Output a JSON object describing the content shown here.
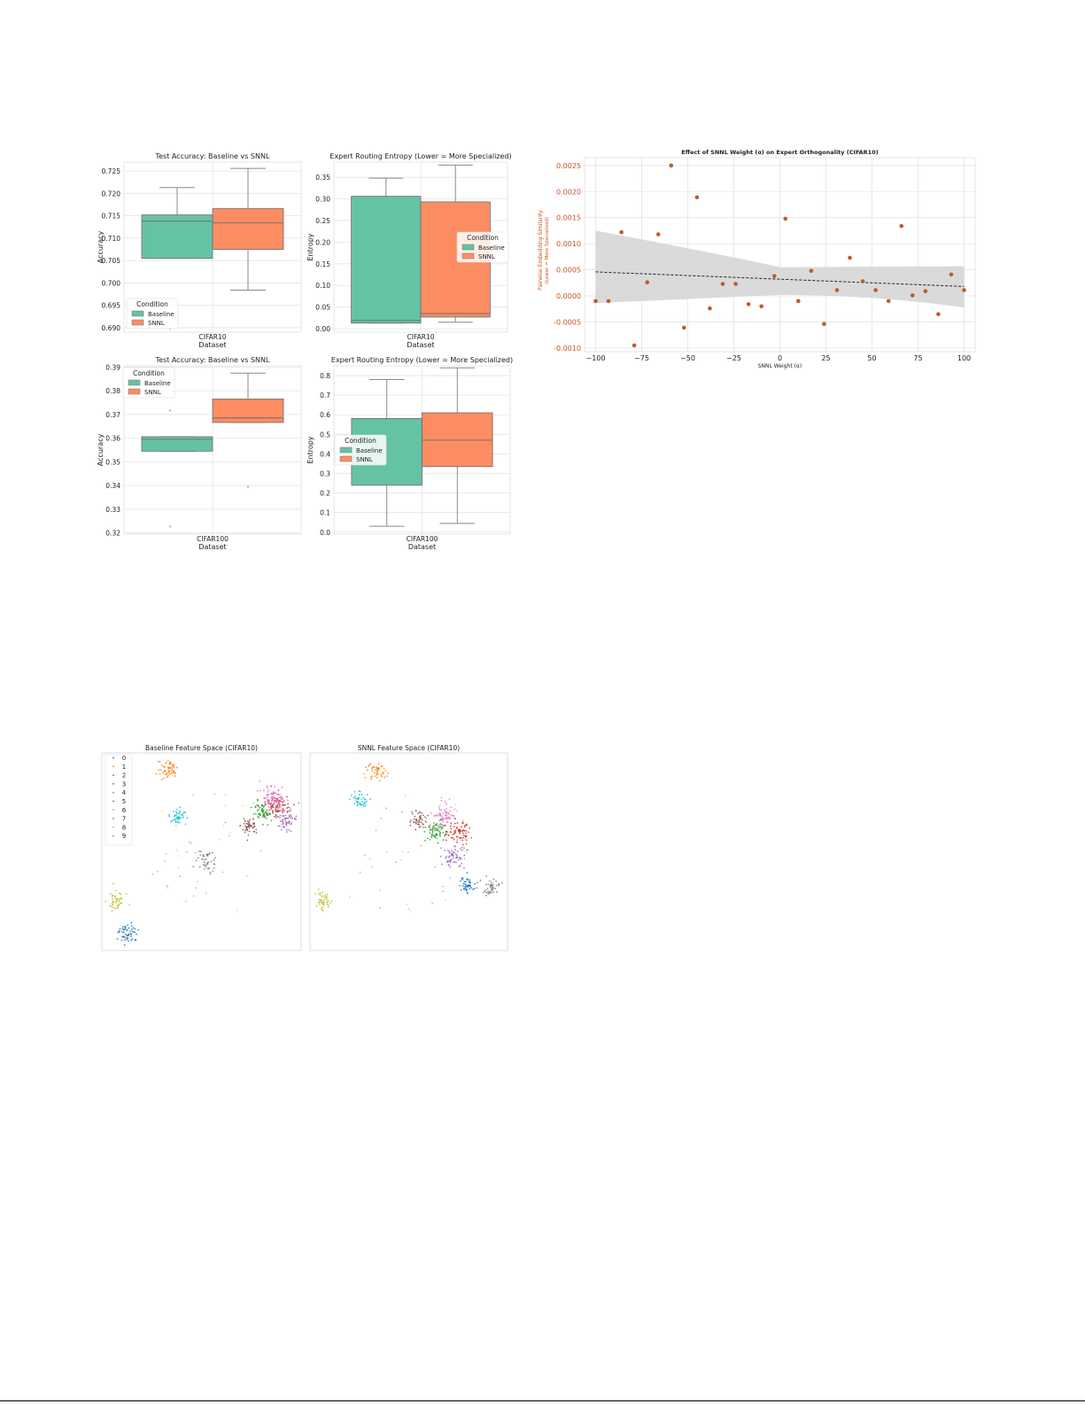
{
  "colors": {
    "baseline": "#66c2a5",
    "snnl": "#fc8d62",
    "orange_text": "#c8541e",
    "point": "#c05a2e",
    "band": "#d6d6d6",
    "grid": "#e3e3e3",
    "whisker": "#8a8a8a"
  },
  "chart_data": [
    {
      "id": "acc_cifar10",
      "type": "box",
      "title": "Test Accuracy: Baseline vs SNNL",
      "xlabel": "Dataset",
      "ylabel": "Accuracy",
      "categories": [
        "CIFAR10"
      ],
      "ylim": [
        0.689,
        0.727
      ],
      "yticks": [
        0.69,
        0.695,
        0.7,
        0.705,
        0.71,
        0.715,
        0.72,
        0.725
      ],
      "tick_decimals": 3,
      "legend": {
        "title": "Condition",
        "entries": [
          "Baseline",
          "SNNL"
        ],
        "placement": "lower-left"
      },
      "series": [
        {
          "name": "Baseline",
          "whislo": 0.7055,
          "q1": 0.7055,
          "median": 0.7138,
          "q3": 0.7152,
          "whishi": 0.7213,
          "fliers": [
            0.6898
          ]
        },
        {
          "name": "SNNL",
          "whislo": 0.6984,
          "q1": 0.7075,
          "median": 0.7134,
          "q3": 0.7166,
          "whishi": 0.7256,
          "fliers": []
        }
      ]
    },
    {
      "id": "ent_cifar10",
      "type": "box",
      "title": "Expert Routing Entropy (Lower = More Specialized)",
      "xlabel": "Dataset",
      "ylabel": "Entropy",
      "categories": [
        "CIFAR10"
      ],
      "ylim": [
        -0.008,
        0.385
      ],
      "yticks": [
        0.0,
        0.05,
        0.1,
        0.15,
        0.2,
        0.25,
        0.3,
        0.35
      ],
      "tick_decimals": 2,
      "legend": {
        "title": "Condition",
        "entries": [
          "Baseline",
          "SNNL"
        ],
        "placement": "center-right"
      },
      "series": [
        {
          "name": "Baseline",
          "whislo": 0.013,
          "q1": 0.013,
          "median": 0.019,
          "q3": 0.306,
          "whishi": 0.348,
          "fliers": []
        },
        {
          "name": "SNNL",
          "whislo": 0.015,
          "q1": 0.027,
          "median": 0.035,
          "q3": 0.293,
          "whishi": 0.378,
          "fliers": []
        }
      ]
    },
    {
      "id": "acc_cifar100",
      "type": "box",
      "title": "Test Accuracy: Baseline vs SNNL",
      "xlabel": "Dataset",
      "ylabel": "Accuracy",
      "categories": [
        "CIFAR100"
      ],
      "ylim": [
        0.3195,
        0.3905
      ],
      "yticks": [
        0.32,
        0.33,
        0.34,
        0.35,
        0.36,
        0.37,
        0.38,
        0.39
      ],
      "tick_decimals": 2,
      "legend": {
        "title": "Condition",
        "entries": [
          "Baseline",
          "SNNL"
        ],
        "placement": "upper-left"
      },
      "series": [
        {
          "name": "Baseline",
          "whislo": 0.3545,
          "q1": 0.3545,
          "median": 0.3595,
          "q3": 0.3606,
          "whishi": 0.3606,
          "fliers": [
            0.3717,
            0.3227
          ]
        },
        {
          "name": "SNNL",
          "whislo": 0.3666,
          "q1": 0.3666,
          "median": 0.3685,
          "q3": 0.3765,
          "whishi": 0.3874,
          "fliers": [
            0.3394
          ]
        }
      ]
    },
    {
      "id": "ent_cifar100",
      "type": "box",
      "title": "Expert Routing Entropy (Lower = More Specialized)",
      "xlabel": "Dataset",
      "ylabel": "Entropy",
      "categories": [
        "CIFAR100"
      ],
      "ylim": [
        -0.01,
        0.85
      ],
      "yticks": [
        0.0,
        0.1,
        0.2,
        0.3,
        0.4,
        0.5,
        0.6,
        0.7,
        0.8
      ],
      "tick_decimals": 1,
      "legend": {
        "title": "Condition",
        "entries": [
          "Baseline",
          "SNNL"
        ],
        "placement": "center-left"
      },
      "series": [
        {
          "name": "Baseline",
          "whislo": 0.03,
          "q1": 0.24,
          "median": 0.58,
          "q3": 0.58,
          "whishi": 0.78,
          "fliers": []
        },
        {
          "name": "SNNL",
          "whislo": 0.045,
          "q1": 0.335,
          "median": 0.47,
          "q3": 0.61,
          "whishi": 0.84,
          "fliers": []
        }
      ]
    },
    {
      "id": "orthogonality",
      "type": "scatter",
      "title": "Effect of SNNL Weight (α) on Expert Orthogonality (CIFAR10)",
      "xlabel": "SNNL Weight (α)",
      "ylabel": "Pairwise Embedding Similarity",
      "ylabel2": "(Lower = More Specialized)",
      "xlim": [
        -106,
        106
      ],
      "ylim": [
        -0.00107,
        0.00265
      ],
      "xticks": [
        -100,
        -75,
        -50,
        -25,
        0,
        25,
        50,
        75,
        100
      ],
      "yticks": [
        -0.001,
        -0.0005,
        0.0,
        0.0005,
        0.001,
        0.0015,
        0.002,
        0.0025
      ],
      "tick_decimals": 4,
      "grid": true,
      "x": [
        -100,
        -93,
        -86,
        -79,
        -72,
        -66,
        -59,
        -52,
        -45,
        -38,
        -31,
        -24,
        -17,
        -10,
        -3,
        3,
        10,
        17,
        24,
        31,
        38,
        45,
        52,
        59,
        66,
        72,
        79,
        86,
        93,
        100
      ],
      "y": [
        -0.0001,
        -0.0001,
        0.00122,
        -0.00095,
        0.00026,
        0.00118,
        0.0025,
        -0.00061,
        0.00189,
        -0.00024,
        0.00023,
        0.00023,
        -0.00016,
        -0.0002,
        0.00038,
        0.00148,
        -0.0001,
        0.00048,
        -0.00054,
        0.00011,
        0.00073,
        0.00028,
        0.00011,
        -0.0001,
        0.00134,
        1e-05,
        9e-05,
        -0.00035,
        0.00041,
        0.00011
      ],
      "fit": {
        "y_start": 0.00046,
        "y_end": 0.00018
      },
      "band": {
        "upper_start": 0.00125,
        "upper_mid": 0.00055,
        "upper_end": 0.00057,
        "lower_start": -0.00014,
        "lower_mid": 2e-05,
        "lower_end": -0.00022
      }
    },
    {
      "id": "baseline_features",
      "type": "scatter",
      "title": "Baseline Feature Space (CIFAR10)",
      "legend": {
        "entries": [
          "0",
          "1",
          "2",
          "3",
          "4",
          "5",
          "6",
          "7",
          "8",
          "9"
        ],
        "placement": "upper-left"
      },
      "clusters": [
        {
          "label": "0",
          "cx": 0.13,
          "cy": 0.91,
          "spread": 0.025,
          "count": 55
        },
        {
          "label": "1",
          "cx": 0.33,
          "cy": 0.08,
          "spread": 0.025,
          "count": 55
        },
        {
          "label": "2",
          "cx": 0.81,
          "cy": 0.3,
          "spread": 0.028,
          "count": 65
        },
        {
          "label": "3",
          "cx": 0.88,
          "cy": 0.27,
          "spread": 0.03,
          "count": 75
        },
        {
          "label": "4",
          "cx": 0.92,
          "cy": 0.33,
          "spread": 0.03,
          "count": 65
        },
        {
          "label": "5",
          "cx": 0.74,
          "cy": 0.37,
          "spread": 0.022,
          "count": 50
        },
        {
          "label": "6",
          "cx": 0.86,
          "cy": 0.22,
          "spread": 0.03,
          "count": 70
        },
        {
          "label": "7",
          "cx": 0.53,
          "cy": 0.55,
          "spread": 0.025,
          "count": 45
        },
        {
          "label": "8",
          "cx": 0.07,
          "cy": 0.75,
          "spread": 0.022,
          "count": 45
        },
        {
          "label": "9",
          "cx": 0.38,
          "cy": 0.32,
          "spread": 0.02,
          "count": 45
        }
      ]
    },
    {
      "id": "snnl_features",
      "type": "scatter",
      "title": "SNNL Feature Space (CIFAR10)",
      "clusters": [
        {
          "label": "0",
          "cx": 0.8,
          "cy": 0.67,
          "spread": 0.022,
          "count": 50
        },
        {
          "label": "1",
          "cx": 0.34,
          "cy": 0.1,
          "spread": 0.023,
          "count": 50
        },
        {
          "label": "2",
          "cx": 0.63,
          "cy": 0.39,
          "spread": 0.028,
          "count": 65
        },
        {
          "label": "3",
          "cx": 0.75,
          "cy": 0.4,
          "spread": 0.03,
          "count": 70
        },
        {
          "label": "4",
          "cx": 0.73,
          "cy": 0.52,
          "spread": 0.03,
          "count": 65
        },
        {
          "label": "5",
          "cx": 0.55,
          "cy": 0.34,
          "spread": 0.022,
          "count": 50
        },
        {
          "label": "6",
          "cx": 0.68,
          "cy": 0.32,
          "spread": 0.03,
          "count": 70
        },
        {
          "label": "7",
          "cx": 0.92,
          "cy": 0.68,
          "spread": 0.02,
          "count": 45
        },
        {
          "label": "8",
          "cx": 0.07,
          "cy": 0.75,
          "spread": 0.02,
          "count": 45
        },
        {
          "label": "9",
          "cx": 0.25,
          "cy": 0.24,
          "spread": 0.02,
          "count": 45
        }
      ]
    }
  ]
}
